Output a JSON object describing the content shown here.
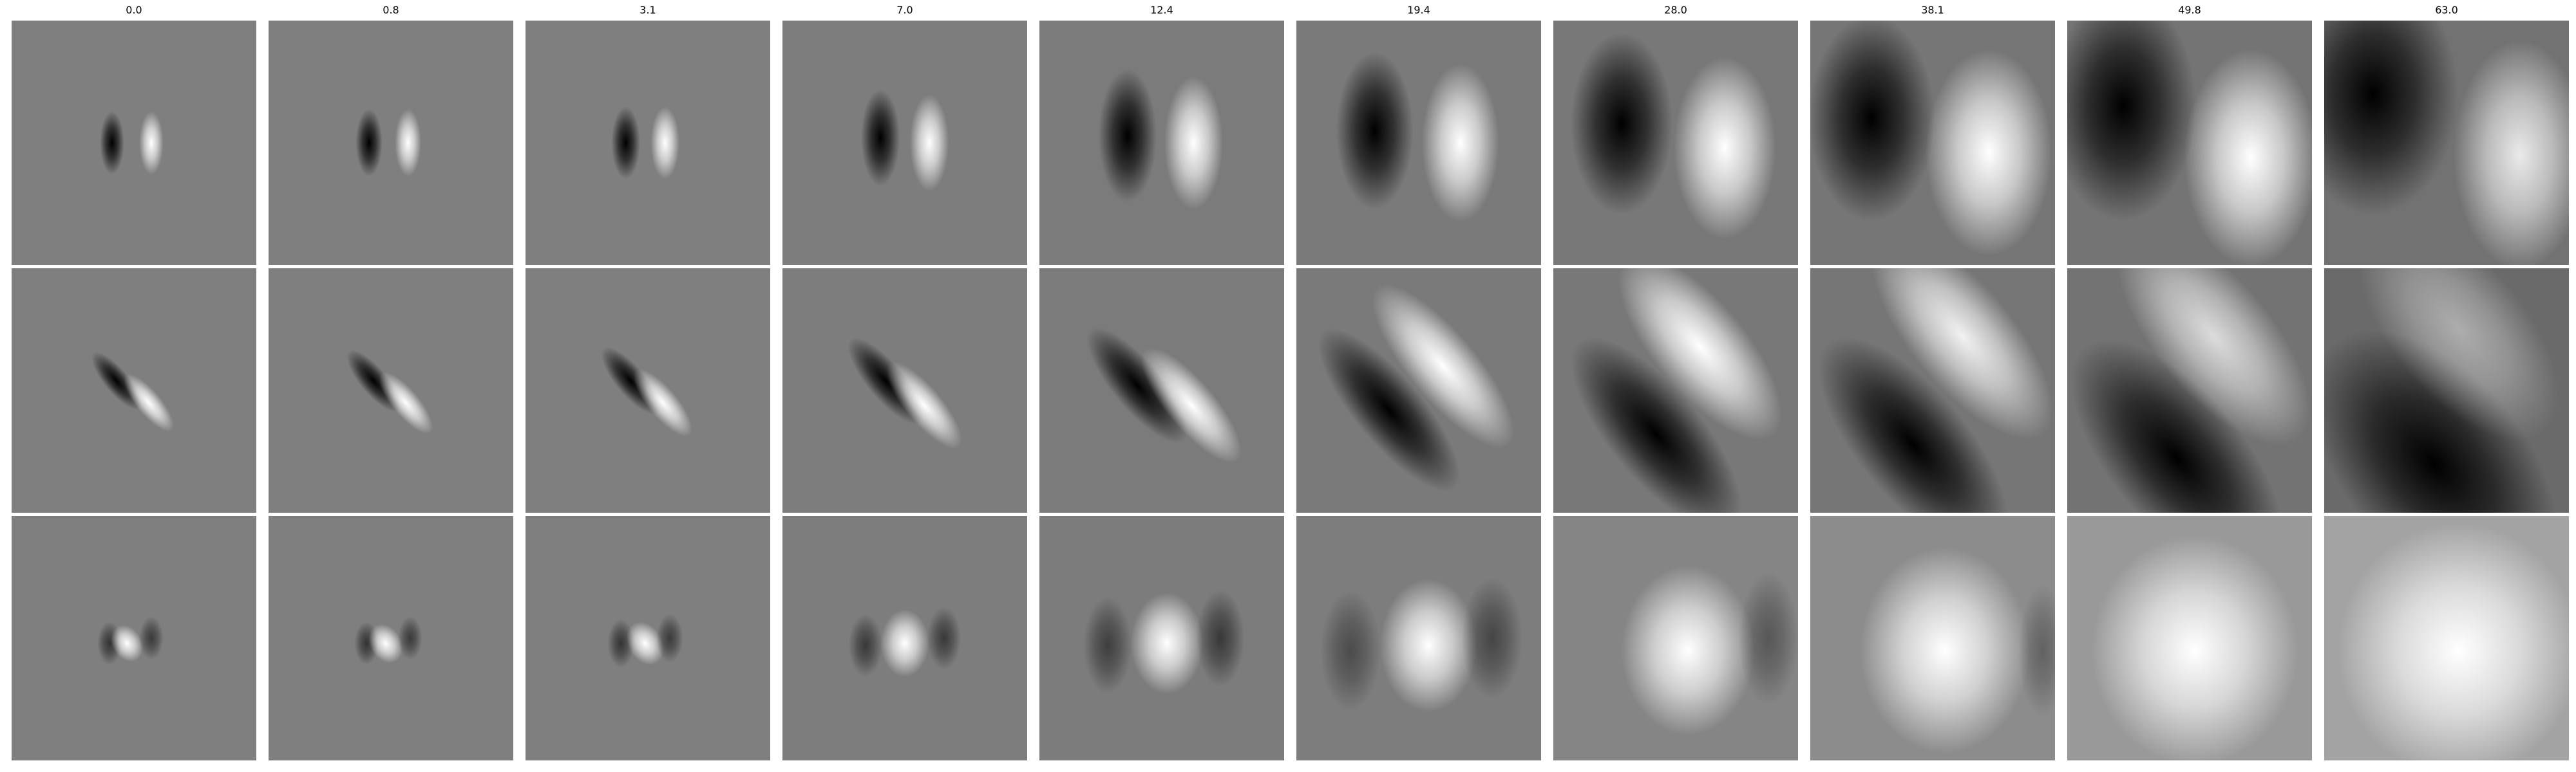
{
  "figure": {
    "column_titles": [
      "0.0",
      "0.8",
      "3.1",
      "7.0",
      "12.4",
      "19.4",
      "28.0",
      "38.1",
      "49.8",
      "63.0"
    ],
    "rows": [
      {
        "panels": [
          {
            "bg": "#7f7f7f",
            "blobs": [
              {
                "kind": "dark",
                "dx": -0.09,
                "dy": 0.0,
                "w": 0.1,
                "h": 0.26,
                "rot": 0,
                "op": 1.0
              },
              {
                "kind": "light",
                "dx": 0.07,
                "dy": 0.0,
                "w": 0.1,
                "h": 0.26,
                "rot": 0,
                "op": 1.0
              }
            ]
          },
          {
            "bg": "#7f7f7f",
            "blobs": [
              {
                "kind": "dark",
                "dx": -0.09,
                "dy": 0.0,
                "w": 0.11,
                "h": 0.28,
                "rot": 0,
                "op": 1.0
              },
              {
                "kind": "light",
                "dx": 0.07,
                "dy": 0.0,
                "w": 0.11,
                "h": 0.28,
                "rot": 0,
                "op": 1.0
              }
            ]
          },
          {
            "bg": "#7f7f7f",
            "blobs": [
              {
                "kind": "dark",
                "dx": -0.09,
                "dy": 0.0,
                "w": 0.12,
                "h": 0.3,
                "rot": 0,
                "op": 1.0
              },
              {
                "kind": "light",
                "dx": 0.07,
                "dy": 0.0,
                "w": 0.12,
                "h": 0.3,
                "rot": 0,
                "op": 1.0
              }
            ]
          },
          {
            "bg": "#7d7d7d",
            "blobs": [
              {
                "kind": "dark",
                "dx": -0.1,
                "dy": -0.02,
                "w": 0.16,
                "h": 0.4,
                "rot": 0,
                "op": 1.0
              },
              {
                "kind": "light",
                "dx": 0.1,
                "dy": 0.0,
                "w": 0.16,
                "h": 0.4,
                "rot": 0,
                "op": 1.0
              }
            ]
          },
          {
            "bg": "#7b7b7b",
            "blobs": [
              {
                "kind": "dark",
                "dx": -0.14,
                "dy": -0.03,
                "w": 0.24,
                "h": 0.55,
                "rot": 0,
                "op": 1.0
              },
              {
                "kind": "light",
                "dx": 0.13,
                "dy": 0.0,
                "w": 0.24,
                "h": 0.55,
                "rot": 0,
                "op": 1.0
              }
            ]
          },
          {
            "bg": "#7a7a7a",
            "blobs": [
              {
                "kind": "dark",
                "dx": -0.18,
                "dy": -0.05,
                "w": 0.32,
                "h": 0.65,
                "rot": 0,
                "op": 1.0
              },
              {
                "kind": "light",
                "dx": 0.17,
                "dy": 0.0,
                "w": 0.32,
                "h": 0.65,
                "rot": 0,
                "op": 1.0
              }
            ]
          },
          {
            "bg": "#787878",
            "blobs": [
              {
                "kind": "dark",
                "dx": -0.22,
                "dy": -0.08,
                "w": 0.42,
                "h": 0.75,
                "rot": 0,
                "op": 1.0
              },
              {
                "kind": "light",
                "dx": 0.2,
                "dy": 0.02,
                "w": 0.42,
                "h": 0.75,
                "rot": 0,
                "op": 1.0
              }
            ]
          },
          {
            "bg": "#767676",
            "blobs": [
              {
                "kind": "dark",
                "dx": -0.25,
                "dy": -0.1,
                "w": 0.52,
                "h": 0.85,
                "rot": 0,
                "op": 1.0
              },
              {
                "kind": "light",
                "dx": 0.23,
                "dy": 0.04,
                "w": 0.52,
                "h": 0.85,
                "rot": 0,
                "op": 1.0
              }
            ]
          },
          {
            "bg": "#747474",
            "blobs": [
              {
                "kind": "dark",
                "dx": -0.27,
                "dy": -0.15,
                "w": 0.6,
                "h": 0.95,
                "rot": 0,
                "op": 1.0
              },
              {
                "kind": "light",
                "dx": 0.25,
                "dy": 0.06,
                "w": 0.55,
                "h": 0.9,
                "rot": 0,
                "op": 1.0
              }
            ]
          },
          {
            "bg": "#727272",
            "blobs": [
              {
                "kind": "dark",
                "dx": -0.3,
                "dy": -0.2,
                "w": 0.7,
                "h": 1.0,
                "rot": 0,
                "op": 1.0
              },
              {
                "kind": "light",
                "dx": 0.3,
                "dy": 0.05,
                "w": 0.55,
                "h": 0.95,
                "rot": 0,
                "op": 0.85
              }
            ]
          }
        ]
      },
      {
        "panels": [
          {
            "bg": "#7f7f7f",
            "blobs": [
              {
                "kind": "dark",
                "dx": -0.07,
                "dy": -0.04,
                "w": 0.1,
                "h": 0.3,
                "rot": -40,
                "op": 1.0
              },
              {
                "kind": "light",
                "dx": 0.06,
                "dy": 0.05,
                "w": 0.1,
                "h": 0.3,
                "rot": -40,
                "op": 1.0
              }
            ]
          },
          {
            "bg": "#7f7f7f",
            "blobs": [
              {
                "kind": "dark",
                "dx": -0.07,
                "dy": -0.04,
                "w": 0.11,
                "h": 0.32,
                "rot": -40,
                "op": 1.0
              },
              {
                "kind": "light",
                "dx": 0.06,
                "dy": 0.05,
                "w": 0.11,
                "h": 0.32,
                "rot": -40,
                "op": 1.0
              }
            ]
          },
          {
            "bg": "#7f7f7f",
            "blobs": [
              {
                "kind": "dark",
                "dx": -0.07,
                "dy": -0.04,
                "w": 0.12,
                "h": 0.35,
                "rot": -40,
                "op": 1.0
              },
              {
                "kind": "light",
                "dx": 0.06,
                "dy": 0.05,
                "w": 0.12,
                "h": 0.35,
                "rot": -40,
                "op": 1.0
              }
            ]
          },
          {
            "bg": "#7d7d7d",
            "blobs": [
              {
                "kind": "dark",
                "dx": -0.08,
                "dy": -0.04,
                "w": 0.15,
                "h": 0.45,
                "rot": -40,
                "op": 1.0
              },
              {
                "kind": "light",
                "dx": 0.08,
                "dy": 0.06,
                "w": 0.15,
                "h": 0.45,
                "rot": -40,
                "op": 1.0
              }
            ]
          },
          {
            "bg": "#7b7b7b",
            "blobs": [
              {
                "kind": "dark",
                "dx": -0.1,
                "dy": -0.02,
                "w": 0.2,
                "h": 0.6,
                "rot": -40,
                "op": 1.0
              },
              {
                "kind": "light",
                "dx": 0.12,
                "dy": 0.06,
                "w": 0.2,
                "h": 0.6,
                "rot": -40,
                "op": 1.0
              }
            ]
          },
          {
            "bg": "#7a7a7a",
            "blobs": [
              {
                "kind": "dark",
                "dx": -0.12,
                "dy": 0.08,
                "w": 0.28,
                "h": 0.85,
                "rot": -40,
                "op": 1.0
              },
              {
                "kind": "light",
                "dx": 0.1,
                "dy": -0.1,
                "w": 0.28,
                "h": 0.85,
                "rot": -40,
                "op": 1.0
              }
            ]
          },
          {
            "bg": "#787878",
            "blobs": [
              {
                "kind": "dark",
                "dx": -0.08,
                "dy": 0.18,
                "w": 0.38,
                "h": 1.0,
                "rot": -40,
                "op": 1.0
              },
              {
                "kind": "light",
                "dx": 0.1,
                "dy": -0.18,
                "w": 0.38,
                "h": 0.95,
                "rot": -40,
                "op": 1.0
              }
            ]
          },
          {
            "bg": "#767676",
            "blobs": [
              {
                "kind": "dark",
                "dx": -0.08,
                "dy": 0.22,
                "w": 0.45,
                "h": 1.1,
                "rot": -40,
                "op": 1.0
              },
              {
                "kind": "light",
                "dx": 0.12,
                "dy": -0.22,
                "w": 0.42,
                "h": 1.05,
                "rot": -40,
                "op": 0.9
              }
            ]
          },
          {
            "bg": "#737373",
            "blobs": [
              {
                "kind": "dark",
                "dx": -0.05,
                "dy": 0.28,
                "w": 0.55,
                "h": 1.2,
                "rot": -40,
                "op": 1.0
              },
              {
                "kind": "light",
                "dx": 0.1,
                "dy": -0.22,
                "w": 0.48,
                "h": 1.1,
                "rot": -40,
                "op": 0.75
              }
            ]
          },
          {
            "bg": "#6a6a6a",
            "blobs": [
              {
                "kind": "dark",
                "dx": -0.05,
                "dy": 0.3,
                "w": 0.75,
                "h": 1.3,
                "rot": -40,
                "op": 1.0
              },
              {
                "kind": "light",
                "dx": 0.05,
                "dy": -0.25,
                "w": 0.55,
                "h": 1.1,
                "rot": -40,
                "op": 0.45
              }
            ]
          }
        ]
      },
      {
        "panels": [
          {
            "bg": "#7f7f7f",
            "blobs": [
              {
                "kind": "dark",
                "dx": -0.1,
                "dy": 0.02,
                "w": 0.1,
                "h": 0.18,
                "rot": 0,
                "op": 0.6
              },
              {
                "kind": "light",
                "dx": -0.03,
                "dy": 0.02,
                "w": 0.12,
                "h": 0.16,
                "rot": -30,
                "op": 1.0
              },
              {
                "kind": "dark",
                "dx": 0.07,
                "dy": 0.0,
                "w": 0.1,
                "h": 0.18,
                "rot": 0,
                "op": 0.55
              }
            ]
          },
          {
            "bg": "#7f7f7f",
            "blobs": [
              {
                "kind": "dark",
                "dx": -0.1,
                "dy": 0.02,
                "w": 0.1,
                "h": 0.18,
                "rot": 0,
                "op": 0.6
              },
              {
                "kind": "light",
                "dx": -0.02,
                "dy": 0.02,
                "w": 0.13,
                "h": 0.17,
                "rot": -30,
                "op": 1.0
              },
              {
                "kind": "dark",
                "dx": 0.08,
                "dy": 0.0,
                "w": 0.1,
                "h": 0.18,
                "rot": 0,
                "op": 0.55
              }
            ]
          },
          {
            "bg": "#7f7f7f",
            "blobs": [
              {
                "kind": "dark",
                "dx": -0.11,
                "dy": 0.02,
                "w": 0.11,
                "h": 0.2,
                "rot": 0,
                "op": 0.6
              },
              {
                "kind": "light",
                "dx": -0.01,
                "dy": 0.02,
                "w": 0.14,
                "h": 0.19,
                "rot": -30,
                "op": 1.0
              },
              {
                "kind": "dark",
                "dx": 0.09,
                "dy": 0.0,
                "w": 0.11,
                "h": 0.2,
                "rot": 0,
                "op": 0.55
              }
            ]
          },
          {
            "bg": "#7d7d7d",
            "blobs": [
              {
                "kind": "dark",
                "dx": -0.16,
                "dy": 0.03,
                "w": 0.14,
                "h": 0.26,
                "rot": 0,
                "op": 0.55
              },
              {
                "kind": "light",
                "dx": 0.0,
                "dy": 0.02,
                "w": 0.2,
                "h": 0.28,
                "rot": 0,
                "op": 1.0
              },
              {
                "kind": "dark",
                "dx": 0.16,
                "dy": 0.0,
                "w": 0.14,
                "h": 0.26,
                "rot": 0,
                "op": 0.55
              }
            ]
          },
          {
            "bg": "#7c7c7c",
            "blobs": [
              {
                "kind": "dark",
                "dx": -0.22,
                "dy": 0.03,
                "w": 0.2,
                "h": 0.4,
                "rot": 0,
                "op": 0.5
              },
              {
                "kind": "light",
                "dx": 0.02,
                "dy": 0.02,
                "w": 0.3,
                "h": 0.42,
                "rot": 0,
                "op": 1.0
              },
              {
                "kind": "dark",
                "dx": 0.24,
                "dy": 0.0,
                "w": 0.2,
                "h": 0.4,
                "rot": 0,
                "op": 0.55
              }
            ]
          },
          {
            "bg": "#7d7d7d",
            "blobs": [
              {
                "kind": "dark",
                "dx": -0.28,
                "dy": 0.05,
                "w": 0.25,
                "h": 0.5,
                "rot": 0,
                "op": 0.4
              },
              {
                "kind": "light",
                "dx": 0.04,
                "dy": 0.03,
                "w": 0.4,
                "h": 0.55,
                "rot": 0,
                "op": 1.0
              },
              {
                "kind": "dark",
                "dx": 0.3,
                "dy": 0.0,
                "w": 0.25,
                "h": 0.5,
                "rot": 0,
                "op": 0.45
              }
            ]
          },
          {
            "bg": "#858585",
            "blobs": [
              {
                "kind": "light",
                "dx": 0.05,
                "dy": 0.05,
                "w": 0.55,
                "h": 0.7,
                "rot": 0,
                "op": 1.0
              },
              {
                "kind": "dark",
                "dx": 0.38,
                "dy": 0.0,
                "w": 0.25,
                "h": 0.55,
                "rot": 0,
                "op": 0.35
              }
            ]
          },
          {
            "bg": "#8c8c8c",
            "blobs": [
              {
                "kind": "light",
                "dx": 0.05,
                "dy": 0.05,
                "w": 0.7,
                "h": 0.85,
                "rot": 0,
                "op": 1.0
              },
              {
                "kind": "dark",
                "dx": 0.45,
                "dy": 0.05,
                "w": 0.2,
                "h": 0.55,
                "rot": 0,
                "op": 0.3
              }
            ]
          },
          {
            "bg": "#999999",
            "blobs": [
              {
                "kind": "light",
                "dx": 0.02,
                "dy": 0.05,
                "w": 0.85,
                "h": 0.95,
                "rot": 0,
                "op": 1.0
              }
            ]
          },
          {
            "bg": "#a3a3a3",
            "blobs": [
              {
                "kind": "light",
                "dx": 0.05,
                "dy": 0.05,
                "w": 1.0,
                "h": 1.05,
                "rot": 0,
                "op": 1.0
              }
            ]
          }
        ]
      }
    ]
  }
}
